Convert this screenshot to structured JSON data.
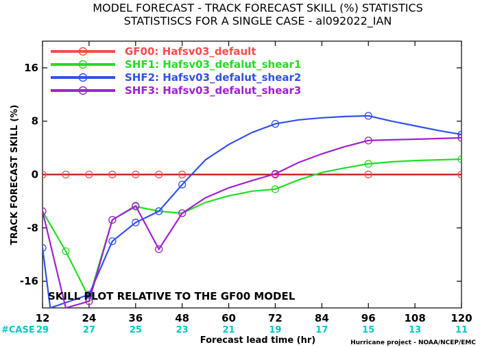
{
  "chart_data": {
    "type": "line",
    "title": "MODEL FORECAST - TRACK FORECAST SKILL (%) STATISTICS",
    "subtitle": "STATISTISCS FOR A SINGLE CASE - al092022_IAN",
    "xlabel": "Forecast lead time (hr)",
    "ylabel": "TRACK FORECAST SKILL (%)",
    "xlim": [
      12,
      120
    ],
    "ylim": [
      -20,
      20
    ],
    "xticks": [
      12,
      24,
      36,
      48,
      60,
      72,
      84,
      96,
      108,
      120
    ],
    "yticks": [
      -16,
      -8,
      0,
      8,
      16
    ],
    "grid": false,
    "legend_position": "top-left",
    "annotation": "SKILL PLOT RELATIVE TO THE GF00 MODEL",
    "case_label": "#CASE",
    "case_counts": [
      {
        "x": 12,
        "n": "29"
      },
      {
        "x": 24,
        "n": "27"
      },
      {
        "x": 36,
        "n": "25"
      },
      {
        "x": 48,
        "n": "23"
      },
      {
        "x": 60,
        "n": "21"
      },
      {
        "x": 72,
        "n": "19"
      },
      {
        "x": 84,
        "n": "17"
      },
      {
        "x": 96,
        "n": "15"
      },
      {
        "x": 108,
        "n": "13"
      },
      {
        "x": 120,
        "n": "11"
      }
    ],
    "credit": "Hurricane project - NOAA/NCEP/EMC",
    "series": [
      {
        "name": "GF00: Hafsv03_default",
        "color": "#ff4a4a",
        "line_color": "#c01010",
        "x": [
          12,
          18,
          24,
          30,
          36,
          42,
          48,
          54,
          60,
          66,
          72,
          78,
          84,
          90,
          96,
          102,
          108,
          114,
          120
        ],
        "y": [
          0,
          0,
          0,
          0,
          0,
          0,
          0,
          0,
          0,
          0,
          0,
          0,
          0,
          0,
          0,
          0,
          0,
          0,
          0
        ],
        "markers": [
          12,
          18,
          24,
          30,
          36,
          42,
          48,
          72,
          96,
          120
        ]
      },
      {
        "name": "SHF1: Hafsv03_defalut_shear1",
        "color": "#22dd22",
        "line_color": "#22dd22",
        "x": [
          12,
          18,
          24,
          30,
          36,
          42,
          48,
          54,
          60,
          66,
          72,
          78,
          84,
          90,
          96,
          102,
          108,
          114,
          120
        ],
        "y": [
          -5.5,
          -11.5,
          -18.5,
          -6.8,
          -4.8,
          -5.5,
          -5.8,
          -4.2,
          -3.2,
          -2.5,
          -2.2,
          -0.8,
          0.3,
          1.0,
          1.6,
          1.9,
          2.1,
          2.2,
          2.3
        ],
        "markers": [
          12,
          18,
          24,
          30,
          36,
          42,
          48,
          72,
          96,
          120
        ]
      },
      {
        "name": "SHF2: Hafsv03_defalut_shear2",
        "color": "#3050ee",
        "line_color": "#3050ee",
        "x": [
          12,
          14,
          24,
          30,
          36,
          42,
          48,
          54,
          60,
          66,
          72,
          78,
          84,
          90,
          96,
          102,
          108,
          114,
          120
        ],
        "y": [
          -11,
          -20,
          -18,
          -10,
          -7.2,
          -5.5,
          -1.5,
          2.2,
          4.5,
          6.3,
          7.6,
          8.2,
          8.5,
          8.7,
          8.8,
          8.0,
          7.3,
          6.6,
          6.0
        ],
        "markers": [
          12,
          24,
          30,
          36,
          42,
          48,
          72,
          96,
          120
        ]
      },
      {
        "name": "SHF3: Hafsv03_defalut_shear3",
        "color": "#a020d0",
        "line_color": "#a020d0",
        "x": [
          12,
          18,
          24,
          30,
          36,
          42,
          48,
          54,
          60,
          66,
          72,
          78,
          84,
          90,
          96,
          102,
          108,
          114,
          120
        ],
        "y": [
          -5.5,
          -20,
          -19,
          -6.8,
          -4.7,
          -11.2,
          -5.8,
          -3.5,
          -2.0,
          -0.9,
          0.1,
          1.8,
          3.1,
          4.2,
          5.1,
          5.2,
          5.3,
          5.4,
          5.5
        ],
        "markers": [
          12,
          24,
          30,
          36,
          42,
          48,
          72,
          96,
          120
        ]
      }
    ]
  }
}
